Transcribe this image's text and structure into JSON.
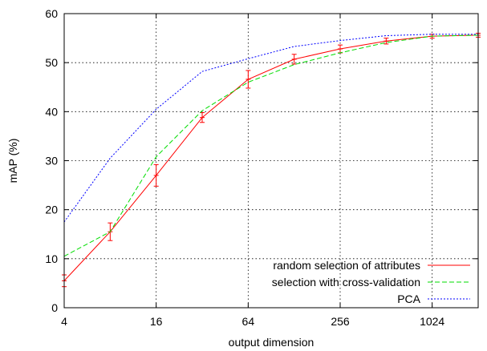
{
  "chart_data": {
    "type": "line",
    "title": "",
    "xlabel": "output dimension",
    "ylabel": "mAP (%)",
    "x_scale": "log2",
    "xlim": [
      4,
      2048
    ],
    "ylim": [
      0,
      60
    ],
    "x_ticks": [
      {
        "value": 4,
        "label": "4"
      },
      {
        "value": 16,
        "label": "16"
      },
      {
        "value": 64,
        "label": "64"
      },
      {
        "value": 256,
        "label": "256"
      },
      {
        "value": 1024,
        "label": "1024"
      }
    ],
    "y_ticks": [
      {
        "value": 0,
        "label": "0"
      },
      {
        "value": 10,
        "label": "10"
      },
      {
        "value": 20,
        "label": "20"
      },
      {
        "value": 30,
        "label": "30"
      },
      {
        "value": 40,
        "label": "40"
      },
      {
        "value": 50,
        "label": "50"
      },
      {
        "value": 60,
        "label": "60"
      }
    ],
    "grid": true,
    "legend_position": "bottom-right",
    "series": [
      {
        "name": "random selection of attributes",
        "color": "#ff0000",
        "style": "solid",
        "x": [
          4,
          8,
          16,
          32,
          64,
          128,
          256,
          512,
          1024,
          2048
        ],
        "y": [
          5.5,
          15.5,
          27.0,
          38.8,
          46.6,
          50.7,
          52.8,
          54.4,
          55.4,
          55.6
        ],
        "error": [
          1.2,
          1.8,
          2.2,
          1.0,
          1.8,
          1.0,
          0.8,
          0.6,
          0.4,
          0.4
        ]
      },
      {
        "name": "selection with cross-validation",
        "color": "#00dd00",
        "style": "dashed",
        "x": [
          4,
          8,
          16,
          32,
          64,
          128,
          256,
          512,
          1024,
          2048
        ],
        "y": [
          10.5,
          15.5,
          30.8,
          40.2,
          46.0,
          49.6,
          52.0,
          54.1,
          55.4,
          55.6
        ]
      },
      {
        "name": "PCA",
        "color": "#0000ff",
        "style": "dotted",
        "x": [
          4,
          8,
          16,
          32,
          64,
          128,
          256,
          512,
          1024,
          2048
        ],
        "y": [
          17.5,
          30.5,
          40.5,
          48.2,
          50.8,
          53.3,
          54.5,
          55.5,
          55.8,
          55.8
        ]
      }
    ]
  }
}
